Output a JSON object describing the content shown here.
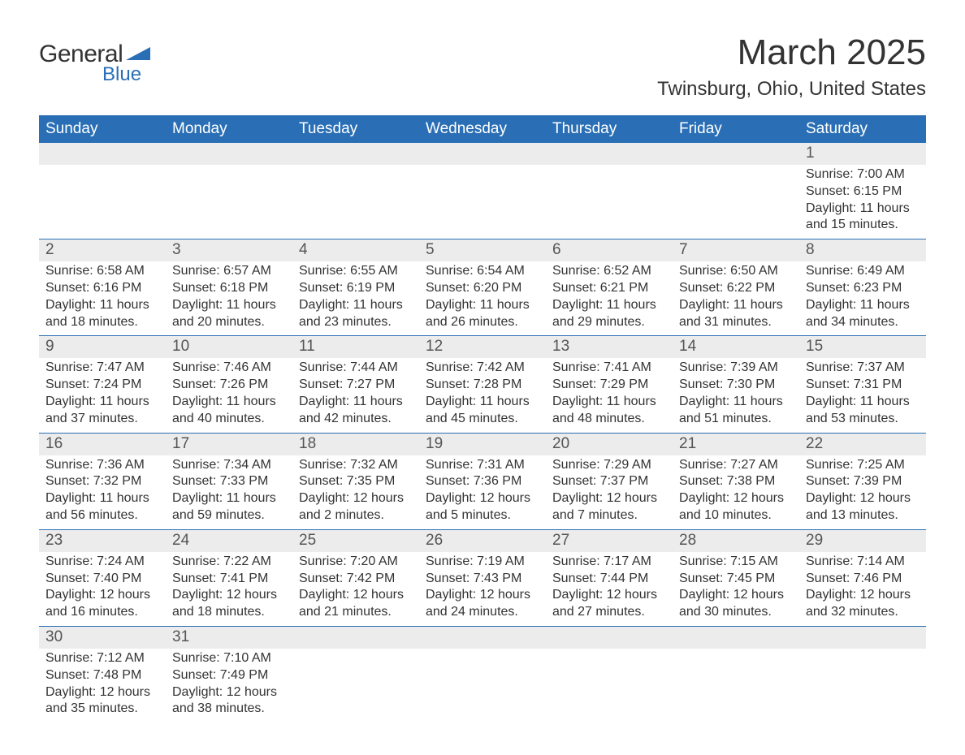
{
  "logo": {
    "general": "General",
    "blue": "Blue",
    "accent_color": "#2a6fb5"
  },
  "title": "March 2025",
  "location": "Twinsburg, Ohio, United States",
  "weekdays": [
    "Sunday",
    "Monday",
    "Tuesday",
    "Wednesday",
    "Thursday",
    "Friday",
    "Saturday"
  ],
  "colors": {
    "header_bg": "#2a6fb5",
    "header_text": "#ffffff",
    "band_bg": "#ececec",
    "text": "#333333",
    "rule": "#2a6fb5"
  },
  "typography": {
    "title_fontsize": 44,
    "location_fontsize": 24,
    "weekday_fontsize": 19,
    "daynum_fontsize": 19,
    "body_fontsize": 16
  },
  "weeks": [
    [
      null,
      null,
      null,
      null,
      null,
      null,
      {
        "n": "1",
        "sunrise": "Sunrise: 7:00 AM",
        "sunset": "Sunset: 6:15 PM",
        "dl1": "Daylight: 11 hours",
        "dl2": "and 15 minutes."
      }
    ],
    [
      {
        "n": "2",
        "sunrise": "Sunrise: 6:58 AM",
        "sunset": "Sunset: 6:16 PM",
        "dl1": "Daylight: 11 hours",
        "dl2": "and 18 minutes."
      },
      {
        "n": "3",
        "sunrise": "Sunrise: 6:57 AM",
        "sunset": "Sunset: 6:18 PM",
        "dl1": "Daylight: 11 hours",
        "dl2": "and 20 minutes."
      },
      {
        "n": "4",
        "sunrise": "Sunrise: 6:55 AM",
        "sunset": "Sunset: 6:19 PM",
        "dl1": "Daylight: 11 hours",
        "dl2": "and 23 minutes."
      },
      {
        "n": "5",
        "sunrise": "Sunrise: 6:54 AM",
        "sunset": "Sunset: 6:20 PM",
        "dl1": "Daylight: 11 hours",
        "dl2": "and 26 minutes."
      },
      {
        "n": "6",
        "sunrise": "Sunrise: 6:52 AM",
        "sunset": "Sunset: 6:21 PM",
        "dl1": "Daylight: 11 hours",
        "dl2": "and 29 minutes."
      },
      {
        "n": "7",
        "sunrise": "Sunrise: 6:50 AM",
        "sunset": "Sunset: 6:22 PM",
        "dl1": "Daylight: 11 hours",
        "dl2": "and 31 minutes."
      },
      {
        "n": "8",
        "sunrise": "Sunrise: 6:49 AM",
        "sunset": "Sunset: 6:23 PM",
        "dl1": "Daylight: 11 hours",
        "dl2": "and 34 minutes."
      }
    ],
    [
      {
        "n": "9",
        "sunrise": "Sunrise: 7:47 AM",
        "sunset": "Sunset: 7:24 PM",
        "dl1": "Daylight: 11 hours",
        "dl2": "and 37 minutes."
      },
      {
        "n": "10",
        "sunrise": "Sunrise: 7:46 AM",
        "sunset": "Sunset: 7:26 PM",
        "dl1": "Daylight: 11 hours",
        "dl2": "and 40 minutes."
      },
      {
        "n": "11",
        "sunrise": "Sunrise: 7:44 AM",
        "sunset": "Sunset: 7:27 PM",
        "dl1": "Daylight: 11 hours",
        "dl2": "and 42 minutes."
      },
      {
        "n": "12",
        "sunrise": "Sunrise: 7:42 AM",
        "sunset": "Sunset: 7:28 PM",
        "dl1": "Daylight: 11 hours",
        "dl2": "and 45 minutes."
      },
      {
        "n": "13",
        "sunrise": "Sunrise: 7:41 AM",
        "sunset": "Sunset: 7:29 PM",
        "dl1": "Daylight: 11 hours",
        "dl2": "and 48 minutes."
      },
      {
        "n": "14",
        "sunrise": "Sunrise: 7:39 AM",
        "sunset": "Sunset: 7:30 PM",
        "dl1": "Daylight: 11 hours",
        "dl2": "and 51 minutes."
      },
      {
        "n": "15",
        "sunrise": "Sunrise: 7:37 AM",
        "sunset": "Sunset: 7:31 PM",
        "dl1": "Daylight: 11 hours",
        "dl2": "and 53 minutes."
      }
    ],
    [
      {
        "n": "16",
        "sunrise": "Sunrise: 7:36 AM",
        "sunset": "Sunset: 7:32 PM",
        "dl1": "Daylight: 11 hours",
        "dl2": "and 56 minutes."
      },
      {
        "n": "17",
        "sunrise": "Sunrise: 7:34 AM",
        "sunset": "Sunset: 7:33 PM",
        "dl1": "Daylight: 11 hours",
        "dl2": "and 59 minutes."
      },
      {
        "n": "18",
        "sunrise": "Sunrise: 7:32 AM",
        "sunset": "Sunset: 7:35 PM",
        "dl1": "Daylight: 12 hours",
        "dl2": "and 2 minutes."
      },
      {
        "n": "19",
        "sunrise": "Sunrise: 7:31 AM",
        "sunset": "Sunset: 7:36 PM",
        "dl1": "Daylight: 12 hours",
        "dl2": "and 5 minutes."
      },
      {
        "n": "20",
        "sunrise": "Sunrise: 7:29 AM",
        "sunset": "Sunset: 7:37 PM",
        "dl1": "Daylight: 12 hours",
        "dl2": "and 7 minutes."
      },
      {
        "n": "21",
        "sunrise": "Sunrise: 7:27 AM",
        "sunset": "Sunset: 7:38 PM",
        "dl1": "Daylight: 12 hours",
        "dl2": "and 10 minutes."
      },
      {
        "n": "22",
        "sunrise": "Sunrise: 7:25 AM",
        "sunset": "Sunset: 7:39 PM",
        "dl1": "Daylight: 12 hours",
        "dl2": "and 13 minutes."
      }
    ],
    [
      {
        "n": "23",
        "sunrise": "Sunrise: 7:24 AM",
        "sunset": "Sunset: 7:40 PM",
        "dl1": "Daylight: 12 hours",
        "dl2": "and 16 minutes."
      },
      {
        "n": "24",
        "sunrise": "Sunrise: 7:22 AM",
        "sunset": "Sunset: 7:41 PM",
        "dl1": "Daylight: 12 hours",
        "dl2": "and 18 minutes."
      },
      {
        "n": "25",
        "sunrise": "Sunrise: 7:20 AM",
        "sunset": "Sunset: 7:42 PM",
        "dl1": "Daylight: 12 hours",
        "dl2": "and 21 minutes."
      },
      {
        "n": "26",
        "sunrise": "Sunrise: 7:19 AM",
        "sunset": "Sunset: 7:43 PM",
        "dl1": "Daylight: 12 hours",
        "dl2": "and 24 minutes."
      },
      {
        "n": "27",
        "sunrise": "Sunrise: 7:17 AM",
        "sunset": "Sunset: 7:44 PM",
        "dl1": "Daylight: 12 hours",
        "dl2": "and 27 minutes."
      },
      {
        "n": "28",
        "sunrise": "Sunrise: 7:15 AM",
        "sunset": "Sunset: 7:45 PM",
        "dl1": "Daylight: 12 hours",
        "dl2": "and 30 minutes."
      },
      {
        "n": "29",
        "sunrise": "Sunrise: 7:14 AM",
        "sunset": "Sunset: 7:46 PM",
        "dl1": "Daylight: 12 hours",
        "dl2": "and 32 minutes."
      }
    ],
    [
      {
        "n": "30",
        "sunrise": "Sunrise: 7:12 AM",
        "sunset": "Sunset: 7:48 PM",
        "dl1": "Daylight: 12 hours",
        "dl2": "and 35 minutes."
      },
      {
        "n": "31",
        "sunrise": "Sunrise: 7:10 AM",
        "sunset": "Sunset: 7:49 PM",
        "dl1": "Daylight: 12 hours",
        "dl2": "and 38 minutes."
      },
      null,
      null,
      null,
      null,
      null
    ]
  ]
}
